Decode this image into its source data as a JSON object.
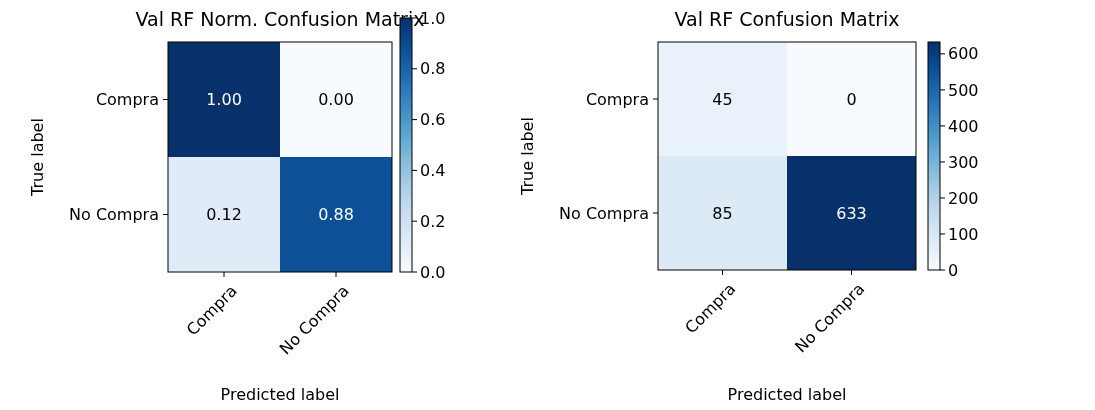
{
  "chart_data": [
    {
      "type": "heatmap",
      "title": "Val RF Norm. Confusion Matrix",
      "xlabel": "Predicted label",
      "ylabel": "True label",
      "categories": [
        "Compra",
        "No Compra"
      ],
      "y_categories": [
        "Compra",
        "No Compra"
      ],
      "cells": [
        [
          1.0,
          0.0
        ],
        [
          0.12,
          0.88
        ]
      ],
      "cell_labels": [
        [
          "1.00",
          "0.00"
        ],
        [
          "0.12",
          "0.88"
        ]
      ],
      "clim": [
        0,
        1
      ],
      "cticks": [
        {
          "value": 0,
          "label": "0.0"
        },
        0.2,
        0.4,
        0.6,
        0.8,
        {
          "value": 1,
          "label": "1.0"
        }
      ]
    },
    {
      "type": "heatmap",
      "title": "Val RF Confusion Matrix",
      "xlabel": "Predicted label",
      "ylabel": "True label",
      "categories": [
        "Compra",
        "No Compra"
      ],
      "y_categories": [
        "Compra",
        "No Compra"
      ],
      "cells": [
        [
          45,
          0
        ],
        [
          85,
          633
        ]
      ],
      "cell_labels": [
        [
          "45",
          "0"
        ],
        [
          "85",
          "633"
        ]
      ],
      "clim": [
        0,
        633
      ],
      "cticks": [
        0,
        100,
        200,
        300,
        400,
        500,
        600
      ]
    }
  ]
}
